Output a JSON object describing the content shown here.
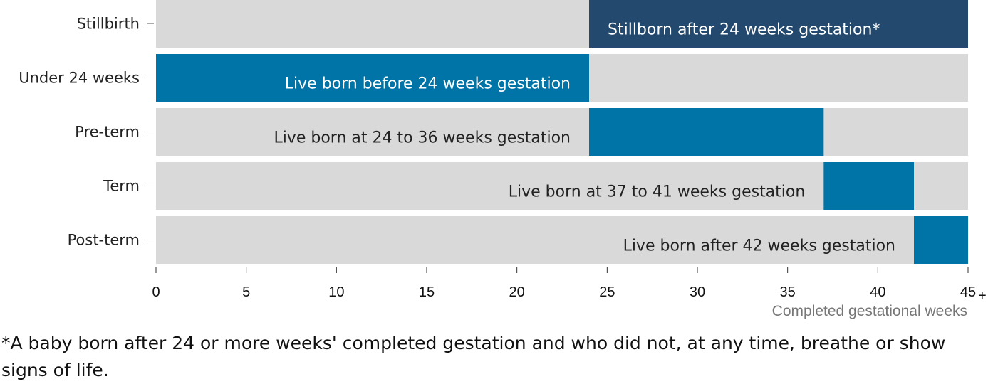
{
  "chart_data": {
    "type": "bar",
    "orientation": "horizontal",
    "xlim": [
      0,
      45
    ],
    "x_ticks": [
      0,
      5,
      10,
      15,
      20,
      25,
      30,
      35,
      40,
      45
    ],
    "x_max_suffix": "+",
    "xlabel": "Completed gestational weeks",
    "categories": [
      "Stillbirth",
      "Under 24 weeks",
      "Pre-term",
      "Term",
      "Post-term"
    ],
    "segments": [
      {
        "category": "Stillbirth",
        "start": 24,
        "end": 45,
        "label": "Stillborn after 24 weeks gestation*",
        "label_position": "inside"
      },
      {
        "category": "Under 24 weeks",
        "start": 0,
        "end": 24,
        "label": "Live born before 24 weeks gestation",
        "label_position": "inside"
      },
      {
        "category": "Pre-term",
        "start": 24,
        "end": 37,
        "label": "Live born at 24 to 36 weeks gestation",
        "label_position": "left"
      },
      {
        "category": "Term",
        "start": 37,
        "end": 42,
        "label": "Live born at 37 to 41 weeks gestation",
        "label_position": "left"
      },
      {
        "category": "Post-term",
        "start": 42,
        "end": 45,
        "label": "Live born after 42 weeks gestation",
        "label_position": "left"
      }
    ],
    "colors": {
      "background_bar": "#d9d9d9",
      "stillbirth": "#234a6e",
      "live": "#0074a6"
    }
  },
  "footnote": "*A baby born after 24 or more weeks' completed gestation and who did not, at any time, breathe or show signs of life."
}
